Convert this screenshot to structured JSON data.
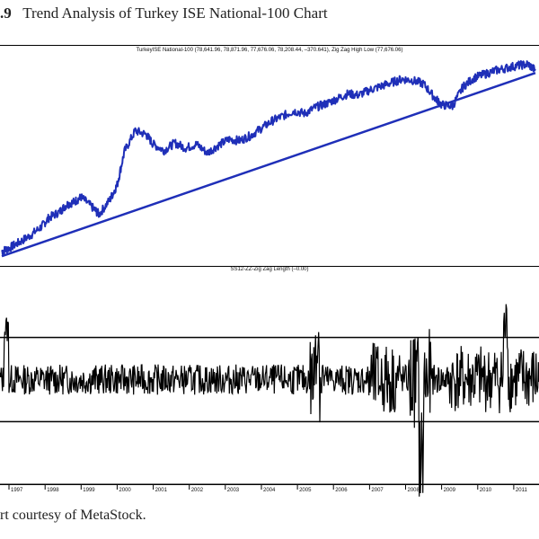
{
  "figure": {
    "number": ".9",
    "title": "Trend Analysis of Turkey ISE National-100 Chart",
    "credit": "rt courtesy of MetaStock."
  },
  "chart_data": [
    {
      "type": "line",
      "title": "TurkeyISE National-100 (78,641.96, 78,871.96, 77,676.06, 78,208.44, –370.641), Zig Zag High Low (77,676.06)",
      "colors": {
        "price": "#1f2fb8",
        "trendline": "#1f2fb8"
      },
      "x": [
        "1996.8",
        "1997.0",
        "1997.3",
        "1997.6",
        "1997.9",
        "1998.1",
        "1998.4",
        "1998.6",
        "1998.8",
        "1999.0",
        "1999.3",
        "1999.5",
        "1999.8",
        "2000.0",
        "2000.2",
        "2000.5",
        "2000.8",
        "2001.0",
        "2001.3",
        "2001.6",
        "2001.9",
        "2002.2",
        "2002.5",
        "2002.8",
        "2003.1",
        "2003.4",
        "2003.7",
        "2004.0",
        "2004.3",
        "2004.6",
        "2004.9",
        "2005.2",
        "2005.5",
        "2005.8",
        "2006.1",
        "2006.4",
        "2006.7",
        "2007.0",
        "2007.3",
        "2007.6",
        "2007.9",
        "2008.2",
        "2008.5",
        "2008.8",
        "2009.0",
        "2009.3",
        "2009.6",
        "2009.9",
        "2010.2",
        "2010.5",
        "2010.8",
        "2011.1",
        "2011.4",
        "2011.6"
      ],
      "series": [
        {
          "values": [
            2100,
            2350,
            2850,
            3400,
            4100,
            4800,
            5300,
            5900,
            6100,
            6500,
            5700,
            5100,
            6300,
            7500,
            10200,
            11900,
            11600,
            10800,
            10300,
            10900,
            10500,
            10800,
            10100,
            10700,
            11200,
            11100,
            11500,
            12100,
            12700,
            13100,
            13500,
            13300,
            13800,
            14100,
            14500,
            14900,
            14800,
            15200,
            15500,
            15800,
            16100,
            16000,
            15700,
            14600,
            14000,
            13900,
            15500,
            16200,
            16500,
            16800,
            17000,
            17200,
            17300,
            16800
          ]
        }
      ],
      "trendline": {
        "x": [
          "1996.8",
          "2011.6"
        ],
        "y": [
          1700,
          16600
        ]
      },
      "ylim": [
        1200,
        18000
      ]
    },
    {
      "type": "line",
      "title": "SS12-ZZ-Zig Zag Length (–0.00)",
      "x_tick_labels": [
        "1997",
        "1998",
        "1999",
        "2000",
        "2001",
        "2002",
        "2003",
        "2004",
        "2005",
        "2006",
        "2007",
        "2008",
        "2009",
        "2010",
        "2011"
      ],
      "reference_lines": [
        25,
        -25
      ],
      "ylim": [
        -60,
        60
      ],
      "series": [
        {
          "values": []
        }
      ]
    }
  ]
}
